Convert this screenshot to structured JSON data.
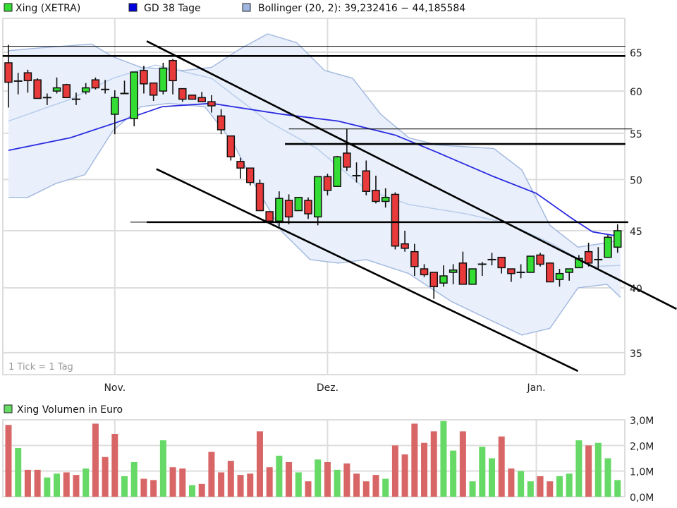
{
  "chart_data": [
    {
      "type": "candlestick",
      "legend": [
        {
          "label": "Xing (XETRA)",
          "color": "#33dd33"
        },
        {
          "label": "GD 38 Tage",
          "color": "#0000dd"
        },
        {
          "label": "Bollinger (20, 2): 39,232416 − 44,185584",
          "color": "#9fb6e0"
        }
      ],
      "note": "1 Tick = 1 Tag",
      "y_scale": "log",
      "ylim": [
        33.5,
        67.5
      ],
      "y_ticks": [
        {
          "value": 65,
          "label": "65"
        },
        {
          "value": 60,
          "label": "60"
        },
        {
          "value": 55,
          "label": "55"
        },
        {
          "value": 50,
          "label": "50"
        },
        {
          "value": 45,
          "label": "45"
        },
        {
          "value": 40,
          "label": "40"
        },
        {
          "value": 35,
          "label": "35"
        }
      ],
      "x_ticks": [
        {
          "index": 11,
          "label": "Nov."
        },
        {
          "index": 33,
          "label": "Dez."
        },
        {
          "index": 54.6,
          "label": "Jan."
        }
      ],
      "grid": true,
      "colors": {
        "up": "#33dd33",
        "down": "#e83a3a",
        "gd": "#2a2ae0",
        "band_fill": "#e9f0fb",
        "band_line": "#a5bae0",
        "middle_line": "#b9cdeb"
      },
      "ohlc": [
        [
          63.6,
          66.0,
          58.0,
          61.1
        ],
        [
          61.3,
          62.3,
          59.6,
          61.2
        ],
        [
          62.3,
          62.7,
          59.8,
          61.3
        ],
        [
          61.4,
          61.6,
          59.1,
          59.1
        ],
        [
          59.2,
          59.7,
          58.3,
          59.2
        ],
        [
          60.0,
          61.7,
          59.7,
          60.4
        ],
        [
          60.8,
          60.9,
          59.2,
          59.2
        ],
        [
          59.0,
          59.8,
          58.3,
          59.0
        ],
        [
          59.9,
          61.0,
          59.6,
          60.4
        ],
        [
          61.4,
          61.7,
          60.2,
          60.4
        ],
        [
          60.1,
          61.4,
          59.7,
          60.3
        ],
        [
          57.2,
          60.1,
          54.9,
          59.2
        ],
        [
          59.7,
          61.3,
          59.7,
          59.7
        ],
        [
          56.7,
          62.4,
          55.8,
          62.4
        ],
        [
          62.6,
          63.2,
          59.7,
          60.9
        ],
        [
          61.0,
          61.0,
          58.8,
          59.5
        ],
        [
          60.0,
          63.6,
          59.6,
          62.9
        ],
        [
          63.9,
          64.1,
          59.6,
          61.3
        ],
        [
          60.3,
          60.3,
          58.7,
          59.0
        ],
        [
          59.5,
          59.5,
          59.0,
          59.0
        ],
        [
          59.2,
          59.9,
          58.7,
          58.7
        ],
        [
          58.7,
          59.5,
          57.4,
          58.2
        ],
        [
          57.0,
          57.8,
          54.9,
          55.4
        ],
        [
          54.7,
          54.7,
          52.0,
          52.4
        ],
        [
          51.9,
          52.3,
          50.1,
          51.2
        ],
        [
          51.2,
          51.2,
          49.4,
          49.7
        ],
        [
          49.6,
          50.0,
          46.9,
          46.9
        ],
        [
          46.8,
          46.8,
          45.9,
          45.9
        ],
        [
          45.9,
          48.8,
          45.4,
          48.1
        ],
        [
          47.9,
          48.5,
          45.6,
          46.3
        ],
        [
          46.9,
          48.2,
          46.9,
          48.2
        ],
        [
          47.9,
          48.2,
          46.1,
          46.6
        ],
        [
          46.3,
          50.3,
          45.5,
          50.3
        ],
        [
          50.3,
          50.6,
          48.4,
          48.9
        ],
        [
          49.3,
          52.5,
          49.3,
          52.4
        ],
        [
          52.8,
          55.5,
          50.9,
          51.3
        ],
        [
          50.4,
          51.8,
          49.7,
          50.4
        ],
        [
          50.9,
          52.0,
          48.4,
          48.8
        ],
        [
          48.9,
          50.4,
          47.6,
          47.8
        ],
        [
          47.8,
          49.1,
          47.2,
          48.2
        ],
        [
          48.5,
          48.7,
          43.3,
          43.6
        ],
        [
          43.8,
          45.0,
          43.1,
          43.4
        ],
        [
          43.1,
          43.8,
          41.0,
          41.8
        ],
        [
          41.6,
          42.0,
          40.9,
          41.1
        ],
        [
          41.3,
          41.3,
          39.1,
          40.1
        ],
        [
          40.4,
          41.9,
          40.1,
          41.0
        ],
        [
          41.3,
          42.0,
          40.3,
          41.5
        ],
        [
          42.1,
          43.1,
          40.3,
          40.3
        ],
        [
          40.3,
          41.6,
          40.3,
          41.6
        ],
        [
          42.0,
          42.2,
          41.0,
          42.0
        ],
        [
          42.4,
          43.0,
          41.9,
          42.4
        ],
        [
          42.6,
          42.6,
          41.2,
          41.7
        ],
        [
          41.6,
          41.6,
          40.5,
          41.2
        ],
        [
          41.3,
          42.0,
          40.8,
          41.3
        ],
        [
          41.3,
          42.7,
          41.3,
          42.7
        ],
        [
          42.8,
          43.0,
          41.8,
          42.0
        ],
        [
          42.1,
          42.1,
          40.5,
          40.5
        ],
        [
          40.7,
          41.6,
          40.1,
          41.2
        ],
        [
          41.3,
          41.6,
          40.6,
          41.6
        ],
        [
          41.7,
          42.8,
          41.7,
          42.5
        ],
        [
          43.1,
          43.9,
          41.8,
          42.1
        ],
        [
          42.4,
          43.5,
          41.5,
          42.4
        ],
        [
          42.6,
          44.6,
          42.6,
          44.4
        ],
        [
          43.5,
          45.6,
          43.0,
          45.0
        ]
      ],
      "gd38": [
        [
          0,
          53.1
        ],
        [
          6.4,
          54.5
        ],
        [
          10.8,
          56.1
        ],
        [
          15.9,
          58.1
        ],
        [
          21,
          58.5
        ],
        [
          28.3,
          57.2
        ],
        [
          34.1,
          56.4
        ],
        [
          40,
          54.8
        ],
        [
          44.3,
          52.9
        ],
        [
          50.2,
          50.3
        ],
        [
          54.6,
          48.6
        ],
        [
          58.2,
          46.2
        ],
        [
          60.4,
          44.9
        ],
        [
          63,
          44.5
        ]
      ],
      "bollinger_upper": [
        [
          0,
          65.2
        ],
        [
          3.5,
          65.6
        ],
        [
          8.6,
          66.1
        ],
        [
          10.8,
          64.4
        ],
        [
          13.7,
          63.0
        ],
        [
          18.1,
          62.6
        ],
        [
          21,
          63.0
        ],
        [
          23.9,
          65.4
        ],
        [
          26.8,
          67.5
        ],
        [
          29.8,
          66.3
        ],
        [
          32.7,
          62.6
        ],
        [
          35.6,
          61.6
        ],
        [
          38.5,
          57.2
        ],
        [
          41.4,
          54.5
        ],
        [
          44.3,
          53.7
        ],
        [
          50.2,
          53.3
        ],
        [
          53.1,
          51.0
        ],
        [
          56,
          45.5
        ],
        [
          58.9,
          43.5
        ],
        [
          61.9,
          43.9
        ],
        [
          63.3,
          44.19
        ]
      ],
      "bollinger_middle": [
        [
          0,
          56.4
        ],
        [
          6.4,
          59.0
        ],
        [
          10.8,
          61.6
        ],
        [
          15.2,
          63.3
        ],
        [
          21,
          61.6
        ],
        [
          26.8,
          56.4
        ],
        [
          31.9,
          53.3
        ],
        [
          37,
          49.0
        ],
        [
          41.4,
          47.5
        ],
        [
          47.3,
          46.6
        ],
        [
          51.6,
          45.7
        ],
        [
          56,
          43.9
        ],
        [
          60.4,
          41.8
        ],
        [
          63.3,
          41.9
        ]
      ],
      "bollinger_lower": [
        [
          0,
          48.2
        ],
        [
          2,
          48.2
        ],
        [
          4.9,
          49.6
        ],
        [
          7.9,
          50.5
        ],
        [
          10.8,
          55.3
        ],
        [
          13.7,
          58.1
        ],
        [
          16.6,
          58.5
        ],
        [
          20.3,
          58.1
        ],
        [
          23.2,
          54.0
        ],
        [
          25.4,
          49.6
        ],
        [
          28.3,
          44.9
        ],
        [
          31.2,
          42.4
        ],
        [
          34.1,
          42.1
        ],
        [
          37,
          42.4
        ],
        [
          41.4,
          41.2
        ],
        [
          45.8,
          38.9
        ],
        [
          50.2,
          37.3
        ],
        [
          53.1,
          36.3
        ],
        [
          56,
          36.8
        ],
        [
          58.9,
          40.0
        ],
        [
          61.9,
          40.3
        ],
        [
          63.3,
          39.23
        ]
      ],
      "annotation_lines": [
        {
          "from": [
            -0.6,
            65.8
          ],
          "to": [
            63.8,
            65.8
          ],
          "weight": "thin"
        },
        {
          "from": [
            -0.6,
            64.5
          ],
          "to": [
            63.8,
            64.5
          ],
          "weight": "thick"
        },
        {
          "from": [
            29.0,
            55.5
          ],
          "to": [
            64.5,
            55.5
          ],
          "weight": "thin"
        },
        {
          "from": [
            28.6,
            53.8
          ],
          "to": [
            63.8,
            53.8
          ],
          "weight": "thick"
        },
        {
          "from": [
            12.6,
            45.8
          ],
          "to": [
            14.3,
            45.8
          ],
          "weight": "thin"
        },
        {
          "from": [
            14.3,
            45.8
          ],
          "to": [
            64.1,
            45.8
          ],
          "weight": "thick"
        },
        {
          "from": [
            14.3,
            66.5
          ],
          "to": [
            69.1,
            38.3
          ],
          "weight": "thick"
        },
        {
          "from": [
            15.3,
            51.1
          ],
          "to": [
            58.9,
            33.7
          ],
          "weight": "thick"
        }
      ]
    },
    {
      "type": "bar",
      "legend": [
        {
          "label": "Xing Volumen in Euro",
          "color": "#66dd66"
        }
      ],
      "unit": "M",
      "ylim": [
        0,
        3.0
      ],
      "y_ticks": [
        {
          "value": 3,
          "label": "3,0M"
        },
        {
          "value": 2,
          "label": "2,0M"
        },
        {
          "value": 1,
          "label": "1,0M"
        },
        {
          "value": 0,
          "label": "0,0M"
        }
      ],
      "colors": {
        "up": "#66d966",
        "down": "#d96666"
      },
      "values": [
        2.8,
        1.9,
        1.05,
        1.05,
        0.75,
        0.9,
        0.95,
        0.85,
        1.1,
        2.85,
        1.55,
        2.45,
        0.8,
        1.35,
        0.7,
        0.65,
        2.2,
        1.15,
        1.1,
        0.45,
        0.5,
        1.75,
        0.95,
        1.4,
        0.85,
        0.9,
        2.55,
        1.15,
        1.6,
        1.35,
        0.95,
        0.6,
        1.45,
        1.35,
        1.05,
        1.3,
        0.9,
        0.6,
        0.85,
        0.7,
        2.0,
        1.65,
        2.85,
        2.1,
        2.55,
        2.95,
        1.8,
        2.55,
        0.6,
        1.95,
        1.5,
        2.35,
        1.1,
        1.0,
        0.6,
        0.8,
        0.6,
        0.8,
        0.9,
        2.2,
        2.0,
        2.1,
        1.5,
        0.65
      ],
      "up": [
        0,
        1,
        0,
        0,
        1,
        1,
        0,
        0,
        1,
        0,
        0,
        0,
        1,
        1,
        0,
        0,
        1,
        0,
        0,
        1,
        0,
        0,
        0,
        0,
        0,
        0,
        0,
        0,
        1,
        0,
        1,
        0,
        1,
        0,
        1,
        0,
        0,
        0,
        0,
        1,
        0,
        0,
        0,
        0,
        0,
        1,
        1,
        0,
        1,
        1,
        1,
        0,
        0,
        1,
        1,
        0,
        0,
        1,
        1,
        1,
        0,
        1,
        1,
        1
      ]
    }
  ]
}
